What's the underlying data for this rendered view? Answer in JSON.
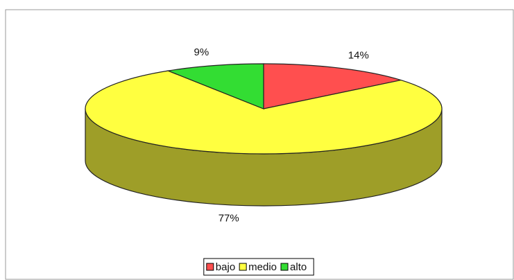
{
  "chart_data": {
    "type": "pie",
    "categories": [
      "bajo",
      "medio",
      "alto"
    ],
    "values": [
      14,
      77,
      9
    ],
    "value_labels": [
      "14%",
      "77%",
      "9%"
    ],
    "colors": [
      "#ff4f4f",
      "#ffff40",
      "#33dd33"
    ],
    "legend": "bottom"
  }
}
